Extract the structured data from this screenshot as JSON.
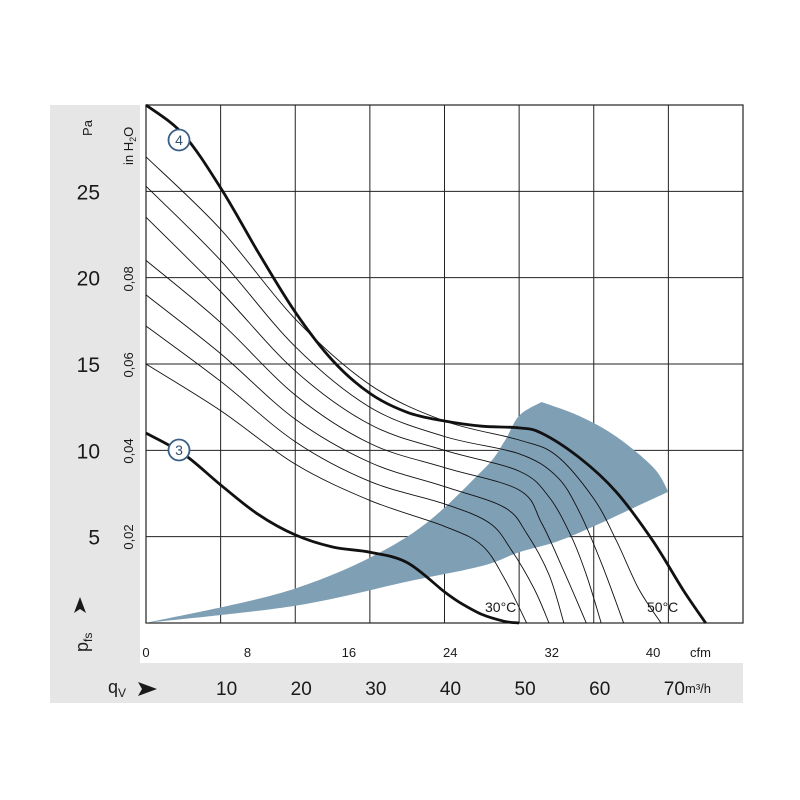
{
  "chart_data": {
    "type": "line",
    "title": "",
    "y_unit": "Pa",
    "y_ticks": [
      "25",
      "20",
      "15",
      "10",
      "5"
    ],
    "y_label_main": "p",
    "y_label_sub": "fs",
    "y2_unit": "in H",
    "y2_unit_sub": "2",
    "y2_unit_tail": "O",
    "y2_ticks": [
      "0,08",
      "0,06",
      "0,04",
      "0,02"
    ],
    "x_unit_cfm": "cfm",
    "x_ticks_cfm": [
      "0",
      "8",
      "16",
      "24",
      "32",
      "40"
    ],
    "x_label_main": "q",
    "x_label_sub": "V",
    "x2_unit": "m³/h",
    "x2_ticks": [
      "10",
      "20",
      "30",
      "40",
      "50",
      "60",
      "70"
    ],
    "xlim": [
      0,
      80
    ],
    "ylim": [
      0,
      30
    ],
    "series": [
      {
        "name": "4",
        "x": [
          0,
          5,
          10,
          15,
          20,
          25,
          30,
          35,
          40,
          45,
          50,
          53,
          58,
          63,
          68,
          72,
          75
        ],
        "y": [
          30.0,
          28.3,
          25.2,
          21.5,
          18.0,
          15.2,
          13.3,
          12.2,
          11.7,
          11.4,
          11.3,
          11.0,
          9.6,
          7.6,
          4.7,
          1.9,
          0.0
        ]
      },
      {
        "name": "3",
        "x": [
          0,
          5,
          10,
          15,
          20,
          25,
          30,
          35,
          40,
          42,
          45,
          48,
          50
        ],
        "y": [
          11.0,
          9.8,
          8.0,
          6.3,
          5.1,
          4.4,
          4.1,
          3.5,
          1.8,
          1.2,
          0.5,
          0.1,
          0.0
        ]
      }
    ],
    "intermediate_curves": [
      {
        "x": [
          0,
          10,
          20,
          30,
          40,
          50,
          55,
          60,
          63,
          66,
          69
        ],
        "y": [
          27.0,
          22.8,
          17.6,
          13.8,
          11.7,
          10.6,
          9.7,
          7.2,
          4.8,
          2.0,
          0.0
        ]
      },
      {
        "x": [
          0,
          10,
          20,
          30,
          40,
          50,
          55,
          58,
          61,
          64
        ],
        "y": [
          25.3,
          21.0,
          16.0,
          12.5,
          10.8,
          9.8,
          8.5,
          6.5,
          3.5,
          0.0
        ]
      },
      {
        "x": [
          0,
          10,
          20,
          30,
          40,
          50,
          54,
          57,
          59,
          61
        ],
        "y": [
          23.5,
          19.2,
          14.6,
          11.5,
          10.0,
          8.8,
          7.3,
          5.0,
          2.8,
          0.0
        ]
      },
      {
        "x": [
          0,
          10,
          20,
          30,
          40,
          50,
          53,
          56,
          59
        ],
        "y": [
          21.0,
          17.4,
          13.2,
          10.4,
          9.0,
          7.7,
          5.8,
          3.0,
          0.0
        ]
      },
      {
        "x": [
          0,
          10,
          20,
          30,
          40,
          48,
          51,
          54,
          56
        ],
        "y": [
          19.0,
          15.6,
          11.8,
          9.3,
          7.9,
          6.7,
          5.2,
          2.8,
          0.0
        ]
      },
      {
        "x": [
          0,
          10,
          20,
          30,
          40,
          46,
          49,
          52,
          54
        ],
        "y": [
          17.2,
          14.0,
          10.5,
          8.2,
          6.9,
          5.8,
          4.2,
          2.0,
          0.0
        ]
      },
      {
        "x": [
          0,
          10,
          20,
          30,
          40,
          45,
          48,
          51
        ],
        "y": [
          15.0,
          12.3,
          9.2,
          7.1,
          5.6,
          4.5,
          2.6,
          0.0
        ]
      }
    ],
    "shaded_region": {
      "upper": {
        "x": [
          0,
          20,
          35,
          45,
          48,
          50,
          53
        ],
        "y": [
          0,
          2.0,
          5.0,
          8.8,
          10.5,
          12.0,
          12.8
        ]
      },
      "lower": {
        "x": [
          0,
          20,
          35,
          45,
          50,
          55,
          60,
          65,
          70
        ],
        "y": [
          0,
          1.0,
          2.4,
          3.3,
          4.1,
          4.7,
          5.6,
          6.6,
          7.6
        ]
      },
      "outer": {
        "x": [
          53,
          58,
          63,
          68,
          70
        ],
        "y": [
          12.8,
          12.0,
          10.8,
          9.0,
          7.6
        ]
      },
      "color": "#7f9fb5"
    },
    "temperature_labels": [
      "30°C",
      "50°C"
    ],
    "colors": {
      "panel_bg": "#e6e6e6",
      "curve": "#111111",
      "grid": "#222222",
      "marker_stroke": "#3a5f85",
      "region": "#7f9fb5"
    },
    "grid": true
  }
}
